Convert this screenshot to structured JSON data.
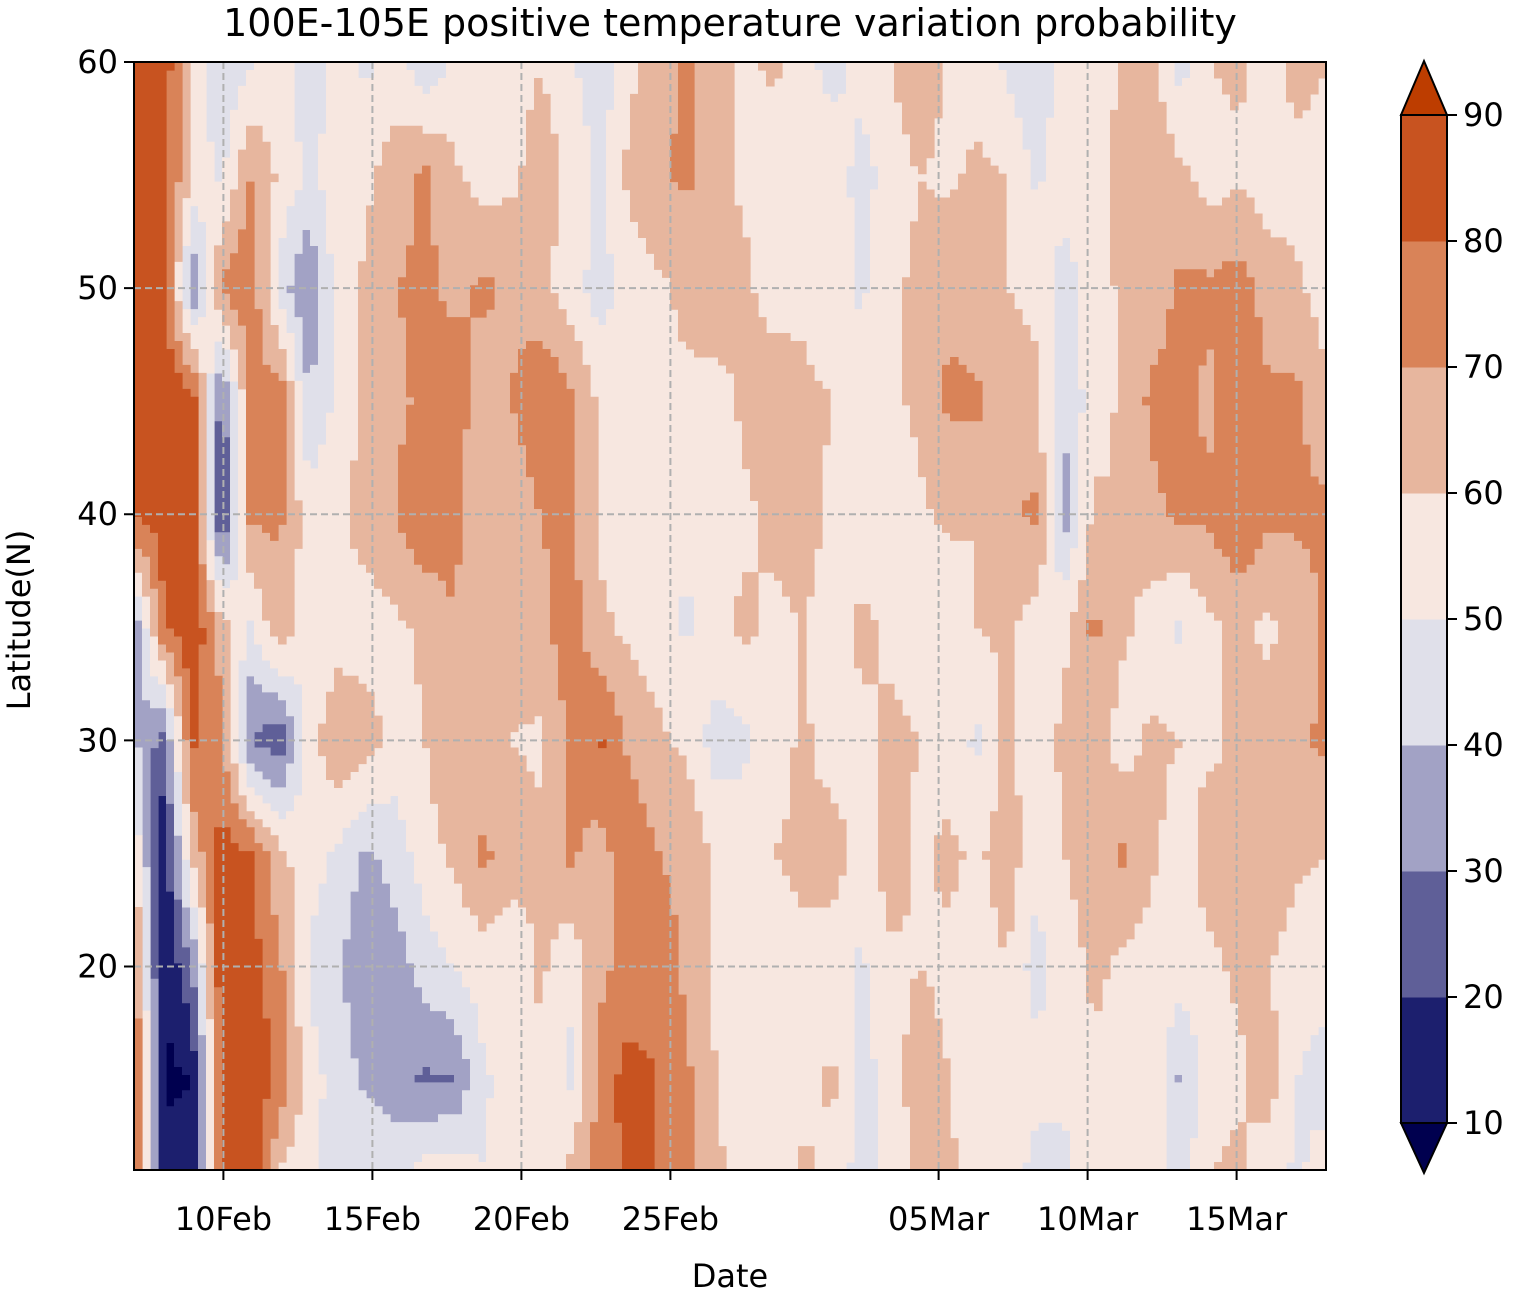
{
  "chart_data": {
    "type": "heatmap",
    "subtype": "filled-contour",
    "title": "100E-105E positive temperature variation probability",
    "xlabel": "Date",
    "ylabel": "Latitude(N)",
    "x_start_date": "2024-02-07",
    "x_end_date": "2024-03-18",
    "xlim": [
      "07Feb",
      "18Mar"
    ],
    "xticks": [
      {
        "date": "2024-02-10",
        "label": "10Feb"
      },
      {
        "date": "2024-02-15",
        "label": "15Feb"
      },
      {
        "date": "2024-02-20",
        "label": "20Feb"
      },
      {
        "date": "2024-02-25",
        "label": "25Feb"
      },
      {
        "date": "2024-03-05",
        "label": "05Mar"
      },
      {
        "date": "2024-03-10",
        "label": "10Mar"
      },
      {
        "date": "2024-03-15",
        "label": "15Mar"
      }
    ],
    "ylim": [
      11,
      60
    ],
    "yticks": [
      20,
      30,
      40,
      50,
      60
    ],
    "grid": true,
    "colorbar": {
      "label": "",
      "extend": "both",
      "levels": [
        10,
        20,
        30,
        40,
        50,
        60,
        70,
        80,
        90
      ],
      "ticks": [
        10,
        20,
        30,
        40,
        50,
        60,
        70,
        80,
        90
      ],
      "colors": [
        "#00004f",
        "#1c1f6e",
        "#5f5f98",
        "#a2a2c5",
        "#e0e0ea",
        "#f7e7e0",
        "#e7b69e",
        "#d98358",
        "#c85320",
        "#bd3d00"
      ]
    },
    "lat": [
      11,
      15,
      20,
      25,
      30,
      35,
      40,
      45,
      50,
      55,
      60
    ],
    "rows": [
      [
        85,
        14,
        12,
        85,
        88,
        58,
        54,
        42,
        48,
        45,
        55,
        55,
        50,
        55,
        55,
        62,
        75,
        82,
        80,
        72,
        62,
        55,
        55,
        62,
        58,
        45,
        55,
        62,
        62,
        55,
        58,
        45,
        48,
        55,
        60,
        58,
        45,
        60,
        62,
        55,
        48,
        55
      ],
      [
        82,
        8,
        10,
        82,
        88,
        78,
        55,
        45,
        38,
        35,
        28,
        30,
        48,
        55,
        58,
        48,
        72,
        85,
        80,
        72,
        60,
        55,
        58,
        55,
        62,
        45,
        55,
        65,
        60,
        55,
        58,
        55,
        52,
        58,
        55,
        58,
        38,
        55,
        58,
        65,
        50,
        45
      ],
      [
        78,
        8,
        30,
        88,
        85,
        72,
        48,
        42,
        30,
        35,
        45,
        50,
        55,
        52,
        62,
        52,
        68,
        72,
        75,
        68,
        58,
        55,
        55,
        58,
        55,
        48,
        58,
        60,
        58,
        55,
        60,
        45,
        55,
        62,
        58,
        55,
        55,
        58,
        62,
        60,
        55,
        55
      ],
      [
        58,
        12,
        62,
        85,
        80,
        62,
        55,
        48,
        38,
        45,
        55,
        62,
        72,
        65,
        62,
        72,
        65,
        78,
        70,
        68,
        58,
        55,
        60,
        62,
        65,
        55,
        65,
        58,
        62,
        58,
        65,
        55,
        60,
        65,
        72,
        62,
        55,
        65,
        62,
        70,
        62,
        60
      ],
      [
        42,
        25,
        82,
        72,
        30,
        22,
        55,
        68,
        65,
        55,
        60,
        70,
        62,
        60,
        58,
        72,
        82,
        68,
        62,
        58,
        45,
        48,
        55,
        62,
        55,
        58,
        62,
        60,
        55,
        48,
        62,
        55,
        62,
        65,
        55,
        62,
        60,
        58,
        62,
        65,
        68,
        72
      ],
      [
        30,
        78,
        88,
        65,
        48,
        68,
        52,
        55,
        55,
        58,
        62,
        70,
        65,
        62,
        68,
        75,
        62,
        58,
        55,
        48,
        58,
        62,
        58,
        60,
        55,
        62,
        58,
        55,
        52,
        60,
        62,
        55,
        58,
        72,
        62,
        55,
        48,
        58,
        62,
        58,
        62,
        72
      ],
      [
        82,
        85,
        85,
        15,
        72,
        72,
        55,
        58,
        65,
        70,
        78,
        72,
        62,
        62,
        70,
        72,
        58,
        55,
        55,
        52,
        55,
        58,
        62,
        65,
        58,
        55,
        55,
        58,
        62,
        60,
        68,
        72,
        35,
        62,
        60,
        68,
        72,
        72,
        80,
        72,
        72,
        72
      ],
      [
        85,
        88,
        85,
        25,
        72,
        78,
        40,
        52,
        62,
        68,
        72,
        75,
        65,
        70,
        80,
        72,
        58,
        55,
        60,
        58,
        55,
        62,
        68,
        62,
        60,
        55,
        58,
        62,
        72,
        72,
        65,
        62,
        42,
        55,
        62,
        72,
        72,
        68,
        78,
        72,
        72,
        62
      ],
      [
        88,
        85,
        30,
        72,
        78,
        45,
        30,
        55,
        62,
        70,
        72,
        68,
        72,
        68,
        62,
        55,
        45,
        55,
        58,
        62,
        68,
        62,
        55,
        58,
        55,
        48,
        58,
        62,
        68,
        62,
        60,
        58,
        45,
        55,
        62,
        65,
        72,
        72,
        75,
        65,
        62,
        55
      ],
      [
        88,
        85,
        58,
        48,
        70,
        58,
        48,
        55,
        58,
        65,
        72,
        62,
        55,
        58,
        65,
        58,
        48,
        62,
        68,
        72,
        62,
        58,
        55,
        52,
        58,
        45,
        55,
        60,
        58,
        62,
        60,
        48,
        55,
        58,
        62,
        70,
        62,
        55,
        58,
        55,
        55,
        55
      ],
      [
        88,
        88,
        55,
        40,
        48,
        55,
        42,
        55,
        48,
        55,
        42,
        52,
        55,
        55,
        60,
        52,
        42,
        58,
        62,
        75,
        62,
        58,
        62,
        55,
        45,
        55,
        60,
        68,
        58,
        55,
        48,
        42,
        55,
        58,
        60,
        62,
        45,
        60,
        62,
        55,
        65,
        60
      ]
    ]
  }
}
